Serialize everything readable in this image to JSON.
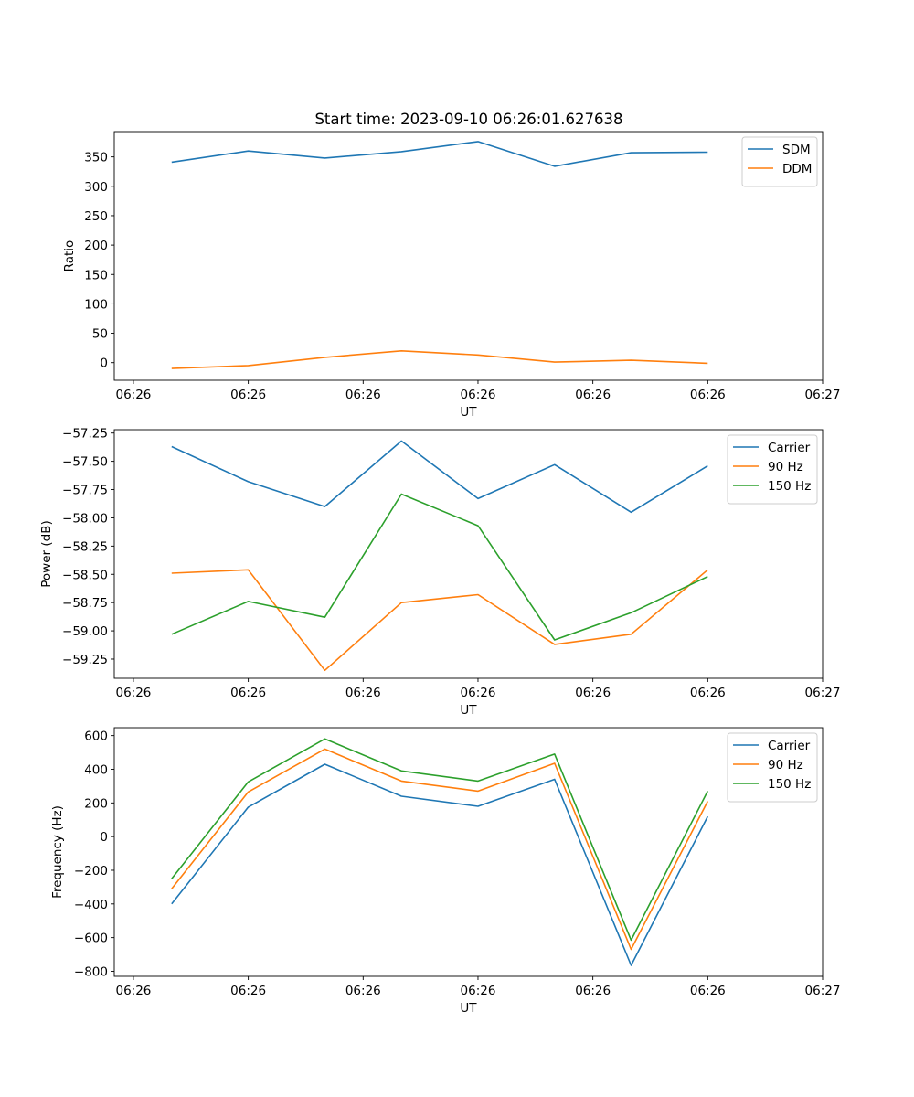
{
  "title": "Start time: 2023-09-10 06:26:01.627638",
  "colors": {
    "blue": "#1f77b4",
    "orange": "#ff7f0e",
    "green": "#2ca02c"
  },
  "chart_data": [
    {
      "type": "line",
      "xlabel": "UT",
      "ylabel": "Ratio",
      "x": [
        1,
        2,
        3,
        4,
        5,
        6,
        7,
        8
      ],
      "xlim": [
        0.25,
        9.5
      ],
      "xticks": [
        0.5,
        2,
        3.5,
        5,
        6.5,
        8,
        9.5
      ],
      "xtick_labels": [
        "06:26",
        "06:26",
        "06:26",
        "06:26",
        "06:26",
        "06:26",
        "06:27"
      ],
      "ylim": [
        -30,
        393
      ],
      "yticks": [
        0,
        50,
        100,
        150,
        200,
        250,
        300,
        350
      ],
      "ytick_labels": [
        "0",
        "50",
        "100",
        "150",
        "200",
        "250",
        "300",
        "350"
      ],
      "legend": "top-right",
      "series": [
        {
          "name": "SDM",
          "color": "#1f77b4",
          "values": [
            341,
            360,
            348,
            359,
            376,
            334,
            357,
            358
          ]
        },
        {
          "name": "DDM",
          "color": "#ff7f0e",
          "values": [
            -10,
            -5,
            9,
            20,
            13,
            1,
            4,
            -1
          ]
        }
      ]
    },
    {
      "type": "line",
      "xlabel": "UT",
      "ylabel": "Power (dB)",
      "x": [
        1,
        2,
        3,
        4,
        5,
        6,
        7,
        8
      ],
      "xlim": [
        0.25,
        9.5
      ],
      "xticks": [
        0.5,
        2,
        3.5,
        5,
        6.5,
        8,
        9.5
      ],
      "xtick_labels": [
        "06:26",
        "06:26",
        "06:26",
        "06:26",
        "06:26",
        "06:26",
        "06:27"
      ],
      "ylim": [
        -59.42,
        -57.22
      ],
      "yticks": [
        -57.25,
        -57.5,
        -57.75,
        -58.0,
        -58.25,
        -58.5,
        -58.75,
        -59.0,
        -59.25
      ],
      "ytick_labels": [
        "−57.25",
        "−57.50",
        "−57.75",
        "−58.00",
        "−58.25",
        "−58.50",
        "−58.75",
        "−59.00",
        "−59.25"
      ],
      "legend": "top-right",
      "series": [
        {
          "name": "Carrier",
          "color": "#1f77b4",
          "values": [
            -57.37,
            -57.68,
            -57.9,
            -57.32,
            -57.83,
            -57.53,
            -57.95,
            -57.54
          ]
        },
        {
          "name": "90 Hz",
          "color": "#ff7f0e",
          "values": [
            -58.49,
            -58.46,
            -59.35,
            -58.75,
            -58.68,
            -59.12,
            -59.03,
            -58.46
          ]
        },
        {
          "name": "150 Hz",
          "color": "#2ca02c",
          "values": [
            -59.03,
            -58.74,
            -58.88,
            -57.79,
            -58.07,
            -59.08,
            -58.84,
            -58.52
          ]
        }
      ]
    },
    {
      "type": "line",
      "xlabel": "UT",
      "ylabel": "Frequency (Hz)",
      "x": [
        1,
        2,
        3,
        4,
        5,
        6,
        7,
        8
      ],
      "xlim": [
        0.25,
        9.5
      ],
      "xticks": [
        0.5,
        2,
        3.5,
        5,
        6.5,
        8,
        9.5
      ],
      "xtick_labels": [
        "06:26",
        "06:26",
        "06:26",
        "06:26",
        "06:26",
        "06:26",
        "06:27"
      ],
      "ylim": [
        -830,
        647
      ],
      "yticks": [
        600,
        400,
        200,
        0,
        -200,
        -400,
        -600,
        -800
      ],
      "ytick_labels": [
        "600",
        "400",
        "200",
        "0",
        "−200",
        "−400",
        "−600",
        "−800"
      ],
      "legend": "top-right",
      "series": [
        {
          "name": "Carrier",
          "color": "#1f77b4",
          "values": [
            -400,
            175,
            430,
            240,
            180,
            340,
            -765,
            120
          ]
        },
        {
          "name": "90 Hz",
          "color": "#ff7f0e",
          "values": [
            -310,
            265,
            520,
            330,
            270,
            435,
            -670,
            210
          ]
        },
        {
          "name": "150 Hz",
          "color": "#2ca02c",
          "values": [
            -250,
            325,
            580,
            390,
            330,
            490,
            -615,
            270
          ]
        }
      ]
    }
  ]
}
